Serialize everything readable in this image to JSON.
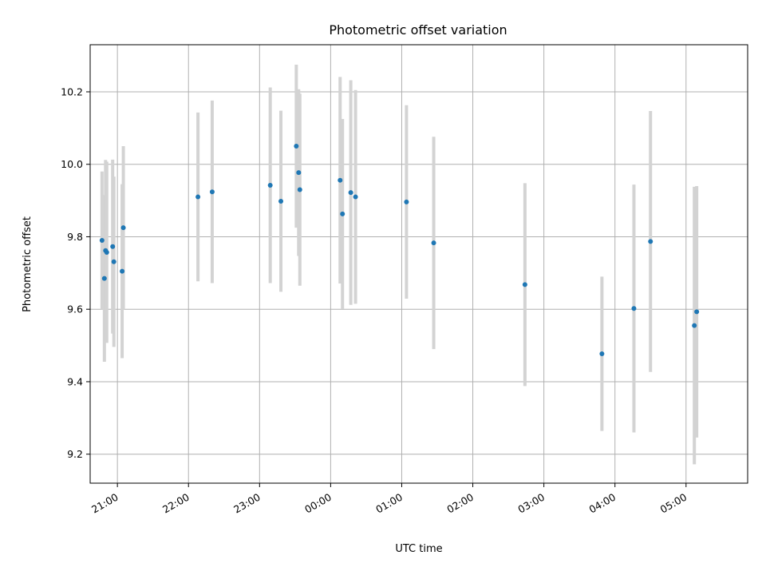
{
  "chart_data": {
    "type": "scatter",
    "title": "Photometric offset variation",
    "xlabel": "UTC time",
    "ylabel": "Photometric offset",
    "x_unit": "UTC",
    "x_ticks": [
      "21:00",
      "22:00",
      "23:00",
      "00:00",
      "01:00",
      "02:00",
      "03:00",
      "04:00",
      "05:00"
    ],
    "xlim": [
      "20:37",
      "05:52"
    ],
    "ylim": [
      9.12,
      10.33
    ],
    "y_ticks": [
      9.2,
      9.4,
      9.6,
      9.8,
      10.0,
      10.2
    ],
    "grid": true,
    "error_bar_color": "#d3d3d3",
    "point_color": "#1f77b4",
    "points": [
      {
        "x": "20:47",
        "y": 9.79,
        "err": 0.19
      },
      {
        "x": "20:49",
        "y": 9.685,
        "err": 0.23
      },
      {
        "x": "20:50",
        "y": 9.762,
        "err": 0.25
      },
      {
        "x": "20:51",
        "y": 9.757,
        "err": 0.25
      },
      {
        "x": "20:56",
        "y": 9.773,
        "err": 0.24
      },
      {
        "x": "20:57",
        "y": 9.731,
        "err": 0.235
      },
      {
        "x": "21:04",
        "y": 9.705,
        "err": 0.24
      },
      {
        "x": "21:05",
        "y": 9.825,
        "err": 0.225
      },
      {
        "x": "22:08",
        "y": 9.91,
        "err": 0.233
      },
      {
        "x": "22:20",
        "y": 9.924,
        "err": 0.252
      },
      {
        "x": "23:09",
        "y": 9.942,
        "err": 0.27
      },
      {
        "x": "23:18",
        "y": 9.898,
        "err": 0.25
      },
      {
        "x": "23:31",
        "y": 10.05,
        "err": 0.225
      },
      {
        "x": "23:33",
        "y": 9.977,
        "err": 0.23
      },
      {
        "x": "23:34",
        "y": 9.93,
        "err": 0.265
      },
      {
        "x": "00:08",
        "y": 9.956,
        "err": 0.285
      },
      {
        "x": "00:10",
        "y": 9.863,
        "err": 0.262
      },
      {
        "x": "00:17",
        "y": 9.922,
        "err": 0.31
      },
      {
        "x": "00:21",
        "y": 9.91,
        "err": 0.295
      },
      {
        "x": "01:04",
        "y": 9.896,
        "err": 0.267
      },
      {
        "x": "01:27",
        "y": 9.783,
        "err": 0.293
      },
      {
        "x": "02:44",
        "y": 9.668,
        "err": 0.28
      },
      {
        "x": "03:49",
        "y": 9.477,
        "err": 0.213
      },
      {
        "x": "04:16",
        "y": 9.602,
        "err": 0.342
      },
      {
        "x": "04:30",
        "y": 9.787,
        "err": 0.36
      },
      {
        "x": "05:07",
        "y": 9.555,
        "err": 0.383
      },
      {
        "x": "05:09",
        "y": 9.593,
        "err": 0.347
      }
    ]
  }
}
